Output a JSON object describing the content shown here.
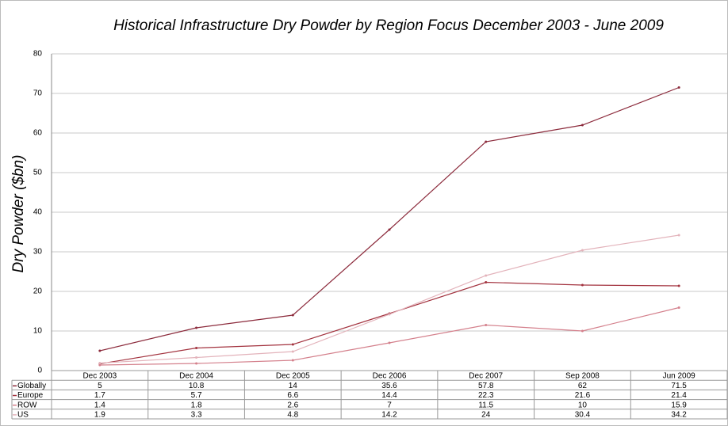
{
  "chart_data": {
    "type": "line",
    "title": "Historical Infrastructure Dry Powder by Region Focus December 2003 - June 2009",
    "y_label": "Dry Powder ($bn)",
    "categories": [
      "Dec 2003",
      "Dec 2004",
      "Dec 2005",
      "Dec 2006",
      "Dec 2007",
      "Sep 2008",
      "Jun 2009"
    ],
    "series": [
      {
        "name": "Globally",
        "color": "#8c2b3c",
        "values": [
          5,
          10.8,
          14,
          35.6,
          57.8,
          62,
          71.5
        ]
      },
      {
        "name": "Europe",
        "color": "#a3333f",
        "values": [
          1.7,
          5.7,
          6.6,
          14.4,
          22.3,
          21.6,
          21.4
        ]
      },
      {
        "name": "ROW",
        "color": "#d4808c",
        "values": [
          1.4,
          1.8,
          2.6,
          7,
          11.5,
          10,
          15.9
        ]
      },
      {
        "name": "US",
        "color": "#e3b3bb",
        "values": [
          1.9,
          3.3,
          4.8,
          14.2,
          24,
          30.4,
          34.2
        ]
      }
    ],
    "ylim": [
      0,
      80
    ],
    "yticks": [
      0,
      10,
      20,
      30,
      40,
      50,
      60,
      70,
      80
    ],
    "grid": true
  }
}
